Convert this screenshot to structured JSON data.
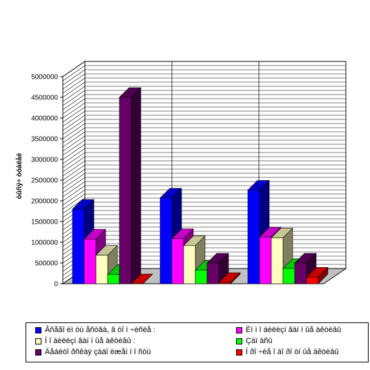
{
  "chart_data": {
    "type": "bar",
    "subtype": "3d-clustered",
    "title": "",
    "xlabel": "",
    "ylabel": "òûñÿ÷ òóáëåé",
    "ylim": [
      0,
      5000000
    ],
    "yticks": [
      "0",
      "500000",
      "1000000",
      "1500000",
      "2000000",
      "2500000",
      "3000000",
      "3500000",
      "4000000",
      "4500000",
      "5000000"
    ],
    "categories": [
      "",
      "",
      ""
    ],
    "grid": true,
    "legend_position": "bottom",
    "series": [
      {
        "name": "Âñåãî èì óù åñòâà, â òî ì  ÷èñëå :",
        "color": "#0000ff",
        "values": [
          1800000,
          2070000,
          2260000
        ]
      },
      {
        "name": "Èì ì î áèëèçí âàí í ûå àêòèâû",
        "color": "#ff00ff",
        "values": [
          1080000,
          1090000,
          1130000
        ]
      },
      {
        "name": "Í î áèëèçí âàí í ûå àêòèâû :",
        "color": "#ffffc0",
        "values": [
          690000,
          920000,
          1110000
        ]
      },
      {
        "name": "Çàï àñû",
        "color": "#00ff00",
        "values": [
          220000,
          330000,
          370000
        ]
      },
      {
        "name": "Äåáèòî ðñêàÿ çàäî ëæåí í î ñòü",
        "color": "#660066",
        "values": [
          4500000,
          500000,
          500000
        ]
      },
      {
        "name": "Í ðî ÷èå î áî ðî òí ûå àêòèâû",
        "color": "#ff0000",
        "values": [
          0,
          30000,
          160000
        ]
      }
    ]
  }
}
